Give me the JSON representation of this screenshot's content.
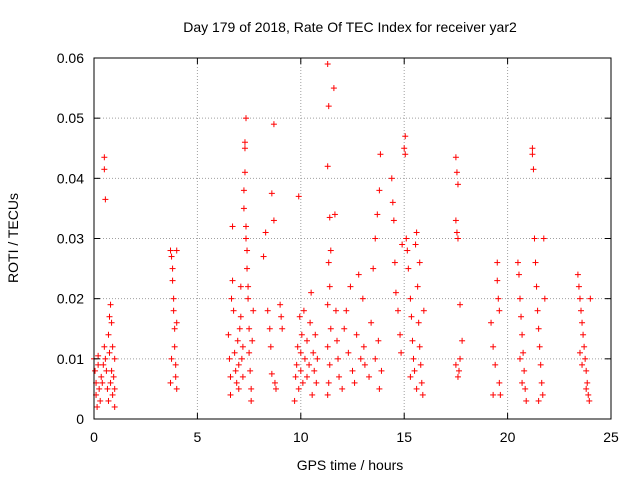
{
  "chart_data": {
    "type": "scatter",
    "title": "Day 179 of 2018, Rate Of TEC Index for receiver yar2",
    "xlabel": "GPS time / hours",
    "ylabel": "ROTI / TECUs",
    "xlim": [
      0,
      25
    ],
    "ylim": [
      0,
      0.06
    ],
    "xticks": [
      0,
      5,
      10,
      15,
      20,
      25
    ],
    "yticks": [
      0,
      0.01,
      0.02,
      0.03,
      0.04,
      0.05,
      0.06
    ],
    "xtick_labels": [
      "0",
      "5",
      "10",
      "15",
      "20",
      "25"
    ],
    "ytick_labels": [
      "0",
      "0.01",
      "0.02",
      "0.03",
      "0.04",
      "0.05",
      "0.06"
    ],
    "grid": true,
    "marker": "+",
    "color": "#ff0000",
    "series": [
      {
        "name": "yar2",
        "points": [
          [
            0.0,
            0.01
          ],
          [
            0.05,
            0.008
          ],
          [
            0.1,
            0.006
          ],
          [
            0.1,
            0.004
          ],
          [
            0.15,
            0.002
          ],
          [
            0.2,
            0.009
          ],
          [
            0.2,
            0.0105
          ],
          [
            0.25,
            0.005
          ],
          [
            0.3,
            0.003
          ],
          [
            0.35,
            0.007
          ],
          [
            0.4,
            0.006
          ],
          [
            0.45,
            0.009
          ],
          [
            0.5,
            0.012
          ],
          [
            0.5,
            0.0435
          ],
          [
            0.5,
            0.0415
          ],
          [
            0.55,
            0.0365
          ],
          [
            0.55,
            0.01
          ],
          [
            0.6,
            0.008
          ],
          [
            0.65,
            0.005
          ],
          [
            0.7,
            0.014
          ],
          [
            0.7,
            0.003
          ],
          [
            0.75,
            0.017
          ],
          [
            0.75,
            0.011
          ],
          [
            0.8,
            0.006
          ],
          [
            0.8,
            0.019
          ],
          [
            0.85,
            0.016
          ],
          [
            0.85,
            0.008
          ],
          [
            0.9,
            0.004
          ],
          [
            0.9,
            0.012
          ],
          [
            0.95,
            0.007
          ],
          [
            1.0,
            0.01
          ],
          [
            1.0,
            0.005
          ],
          [
            1.0,
            0.002
          ],
          [
            3.7,
            0.028
          ],
          [
            3.75,
            0.027
          ],
          [
            3.8,
            0.025
          ],
          [
            3.8,
            0.023
          ],
          [
            3.85,
            0.02
          ],
          [
            3.85,
            0.018
          ],
          [
            3.9,
            0.015
          ],
          [
            3.9,
            0.012
          ],
          [
            3.95,
            0.009
          ],
          [
            3.95,
            0.007
          ],
          [
            4.0,
            0.005
          ],
          [
            4.0,
            0.028
          ],
          [
            3.75,
            0.01
          ],
          [
            3.7,
            0.006
          ],
          [
            4.0,
            0.016
          ],
          [
            6.5,
            0.014
          ],
          [
            6.55,
            0.01
          ],
          [
            6.6,
            0.007
          ],
          [
            6.6,
            0.004
          ],
          [
            6.65,
            0.02
          ],
          [
            6.7,
            0.023
          ],
          [
            6.7,
            0.032
          ],
          [
            6.75,
            0.018
          ],
          [
            6.8,
            0.011
          ],
          [
            6.85,
            0.008
          ],
          [
            6.9,
            0.006
          ],
          [
            6.95,
            0.013
          ],
          [
            7.0,
            0.009
          ],
          [
            7.0,
            0.005
          ],
          [
            7.05,
            0.015
          ],
          [
            7.1,
            0.017
          ],
          [
            7.1,
            0.022
          ],
          [
            7.15,
            0.01
          ],
          [
            7.2,
            0.012
          ],
          [
            7.2,
            0.007
          ],
          [
            7.25,
            0.038
          ],
          [
            7.25,
            0.035
          ],
          [
            7.3,
            0.045
          ],
          [
            7.3,
            0.046
          ],
          [
            7.35,
            0.05
          ],
          [
            7.35,
            0.03
          ],
          [
            7.4,
            0.028
          ],
          [
            7.4,
            0.025
          ],
          [
            7.45,
            0.02
          ],
          [
            7.5,
            0.015
          ],
          [
            7.5,
            0.011
          ],
          [
            7.55,
            0.008
          ],
          [
            7.6,
            0.005
          ],
          [
            7.6,
            0.003
          ],
          [
            7.65,
            0.013
          ],
          [
            7.7,
            0.018
          ],
          [
            7.3,
            0.041
          ],
          [
            7.35,
            0.032
          ],
          [
            7.45,
            0.022
          ],
          [
            8.2,
            0.027
          ],
          [
            8.3,
            0.031
          ],
          [
            8.4,
            0.018
          ],
          [
            8.5,
            0.015
          ],
          [
            8.55,
            0.012
          ],
          [
            8.6,
            0.0075
          ],
          [
            8.6,
            0.0375
          ],
          [
            8.7,
            0.049
          ],
          [
            8.7,
            0.033
          ],
          [
            8.75,
            0.006
          ],
          [
            8.8,
            0.005
          ],
          [
            9.0,
            0.019
          ],
          [
            9.05,
            0.017
          ],
          [
            9.1,
            0.015
          ],
          [
            9.7,
            0.003
          ],
          [
            9.75,
            0.007
          ],
          [
            9.8,
            0.009
          ],
          [
            9.85,
            0.012
          ],
          [
            9.9,
            0.037
          ],
          [
            9.9,
            0.005
          ],
          [
            9.95,
            0.017
          ],
          [
            10.0,
            0.008
          ],
          [
            10.0,
            0.011
          ],
          [
            10.05,
            0.014
          ],
          [
            10.1,
            0.006
          ],
          [
            10.15,
            0.018
          ],
          [
            10.2,
            0.01
          ],
          [
            10.3,
            0.007
          ],
          [
            10.3,
            0.013
          ],
          [
            10.4,
            0.009
          ],
          [
            10.45,
            0.016
          ],
          [
            10.5,
            0.021
          ],
          [
            10.55,
            0.004
          ],
          [
            10.6,
            0.011
          ],
          [
            10.65,
            0.008
          ],
          [
            10.7,
            0.014
          ],
          [
            10.75,
            0.006
          ],
          [
            10.8,
            0.01
          ],
          [
            11.3,
            0.059
          ],
          [
            11.35,
            0.052
          ],
          [
            11.3,
            0.042
          ],
          [
            11.4,
            0.0335
          ],
          [
            11.45,
            0.028
          ],
          [
            11.35,
            0.026
          ],
          [
            11.4,
            0.022
          ],
          [
            11.3,
            0.019
          ],
          [
            11.45,
            0.015
          ],
          [
            11.3,
            0.012
          ],
          [
            11.4,
            0.009
          ],
          [
            11.35,
            0.006
          ],
          [
            11.3,
            0.004
          ],
          [
            11.6,
            0.055
          ],
          [
            11.65,
            0.034
          ],
          [
            11.7,
            0.018
          ],
          [
            11.75,
            0.013
          ],
          [
            11.8,
            0.01
          ],
          [
            11.85,
            0.007
          ],
          [
            12.0,
            0.005
          ],
          [
            12.1,
            0.015
          ],
          [
            12.2,
            0.018
          ],
          [
            12.3,
            0.011
          ],
          [
            12.4,
            0.022
          ],
          [
            12.5,
            0.008
          ],
          [
            12.6,
            0.006
          ],
          [
            12.7,
            0.014
          ],
          [
            12.8,
            0.024
          ],
          [
            12.9,
            0.01
          ],
          [
            13.0,
            0.02
          ],
          [
            13.05,
            0.012
          ],
          [
            13.1,
            0.009
          ],
          [
            13.3,
            0.007
          ],
          [
            13.4,
            0.016
          ],
          [
            13.5,
            0.025
          ],
          [
            13.6,
            0.03
          ],
          [
            13.7,
            0.034
          ],
          [
            13.8,
            0.038
          ],
          [
            13.85,
            0.044
          ],
          [
            13.6,
            0.01
          ],
          [
            13.9,
            0.008
          ],
          [
            13.75,
            0.013
          ],
          [
            13.8,
            0.005
          ],
          [
            14.4,
            0.04
          ],
          [
            14.45,
            0.036
          ],
          [
            14.5,
            0.033
          ],
          [
            14.55,
            0.026
          ],
          [
            14.6,
            0.021
          ],
          [
            14.7,
            0.018
          ],
          [
            14.8,
            0.014
          ],
          [
            14.85,
            0.011
          ],
          [
            14.9,
            0.029
          ],
          [
            15.0,
            0.045
          ],
          [
            15.05,
            0.044
          ],
          [
            15.05,
            0.047
          ],
          [
            15.1,
            0.03
          ],
          [
            15.15,
            0.028
          ],
          [
            15.2,
            0.025
          ],
          [
            15.3,
            0.02
          ],
          [
            15.35,
            0.017
          ],
          [
            15.4,
            0.013
          ],
          [
            15.45,
            0.01
          ],
          [
            15.5,
            0.008
          ],
          [
            15.55,
            0.029
          ],
          [
            15.6,
            0.031
          ],
          [
            15.65,
            0.022
          ],
          [
            15.7,
            0.016
          ],
          [
            15.75,
            0.012
          ],
          [
            15.8,
            0.009
          ],
          [
            15.85,
            0.006
          ],
          [
            15.9,
            0.004
          ],
          [
            15.95,
            0.018
          ],
          [
            15.3,
            0.007
          ],
          [
            15.6,
            0.005
          ],
          [
            15.75,
            0.026
          ],
          [
            17.5,
            0.0435
          ],
          [
            17.55,
            0.041
          ],
          [
            17.6,
            0.039
          ],
          [
            17.5,
            0.033
          ],
          [
            17.55,
            0.031
          ],
          [
            17.6,
            0.03
          ],
          [
            17.7,
            0.019
          ],
          [
            17.8,
            0.013
          ],
          [
            17.5,
            0.009
          ],
          [
            17.65,
            0.008
          ],
          [
            17.7,
            0.01
          ],
          [
            17.6,
            0.007
          ],
          [
            19.2,
            0.016
          ],
          [
            19.3,
            0.012
          ],
          [
            19.4,
            0.009
          ],
          [
            19.5,
            0.026
          ],
          [
            19.5,
            0.023
          ],
          [
            19.55,
            0.02
          ],
          [
            19.6,
            0.018
          ],
          [
            19.6,
            0.006
          ],
          [
            19.65,
            0.004
          ],
          [
            19.3,
            0.004
          ],
          [
            20.5,
            0.026
          ],
          [
            20.55,
            0.024
          ],
          [
            20.6,
            0.02
          ],
          [
            20.65,
            0.017
          ],
          [
            20.7,
            0.014
          ],
          [
            20.75,
            0.011
          ],
          [
            20.8,
            0.008
          ],
          [
            20.85,
            0.005
          ],
          [
            20.9,
            0.003
          ],
          [
            20.6,
            0.01
          ],
          [
            20.7,
            0.006
          ],
          [
            21.2,
            0.045
          ],
          [
            21.2,
            0.044
          ],
          [
            21.25,
            0.0415
          ],
          [
            21.3,
            0.03
          ],
          [
            21.35,
            0.026
          ],
          [
            21.4,
            0.022
          ],
          [
            21.45,
            0.018
          ],
          [
            21.5,
            0.015
          ],
          [
            21.55,
            0.012
          ],
          [
            21.6,
            0.009
          ],
          [
            21.65,
            0.006
          ],
          [
            21.7,
            0.004
          ],
          [
            21.75,
            0.03
          ],
          [
            21.8,
            0.02
          ],
          [
            21.5,
            0.003
          ],
          [
            23.4,
            0.024
          ],
          [
            23.45,
            0.022
          ],
          [
            23.5,
            0.02
          ],
          [
            23.55,
            0.018
          ],
          [
            23.6,
            0.016
          ],
          [
            23.65,
            0.014
          ],
          [
            23.7,
            0.012
          ],
          [
            23.75,
            0.01
          ],
          [
            23.8,
            0.008
          ],
          [
            23.85,
            0.006
          ],
          [
            23.9,
            0.004
          ],
          [
            23.95,
            0.003
          ],
          [
            24.0,
            0.02
          ],
          [
            23.6,
            0.009
          ],
          [
            23.8,
            0.005
          ],
          [
            23.5,
            0.011
          ]
        ]
      }
    ]
  }
}
